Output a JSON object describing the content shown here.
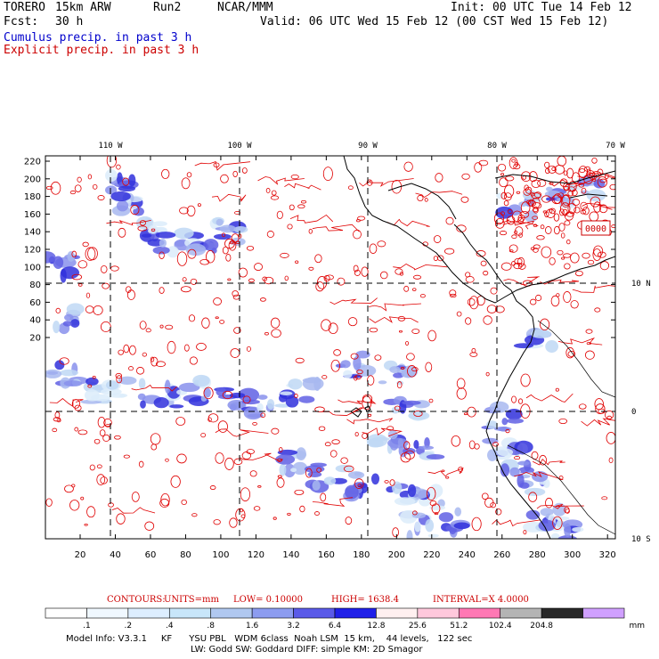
{
  "header": {
    "model": "TORERO",
    "resolution": "15km ARW",
    "run": "Run2",
    "institution": "NCAR/MMM",
    "init": "Init: 00 UTC Tue 14 Feb 12",
    "fcst_label": "Fcst:",
    "fcst_value": "30 h",
    "valid": "Valid: 06 UTC Wed 15 Feb 12 (00 CST Wed 15 Feb 12)",
    "field1": "Cumulus precip. in past 3 h",
    "field2": "Explicit precip. in past 3 h"
  },
  "colors": {
    "cumulus_label": "#0000cc",
    "explicit_label": "#cc0000",
    "explicit_contour": "#e00000",
    "coast": "#000000"
  },
  "map": {
    "lon_labels": [
      "110 W",
      "100 W",
      "90 W",
      "80 W",
      "70 W"
    ],
    "lat_labels": [
      "10 N",
      "0",
      "10 S"
    ],
    "y_ticks": [
      "220",
      "200",
      "180",
      "160",
      "140",
      "120",
      "100",
      "80",
      "60",
      "40",
      "20"
    ],
    "x_ticks": [
      "20",
      "40",
      "60",
      "80",
      "100",
      "120",
      "140",
      "160",
      "180",
      "200",
      "220",
      "240",
      "260",
      "280",
      "300",
      "320"
    ],
    "max_box": "0000"
  },
  "contours_info": {
    "label": "CONTOURS:",
    "units": "UNITS=mm",
    "low": "LOW= 0.10000",
    "high": "HIGH= 1638.4",
    "interval": "INTERVAL=X 4.0000"
  },
  "colorbar": {
    "labels": [
      ".1",
      ".2",
      ".4",
      ".8",
      "1.6",
      "3.2",
      "6.4",
      "12.8",
      "25.6",
      "51.2",
      "102.4",
      "204.8"
    ],
    "units": "mm",
    "colors": [
      "#ffffff",
      "#f0f8ff",
      "#ddeeff",
      "#c8e6fa",
      "#b0c8f0",
      "#8c9cf0",
      "#5a5ae8",
      "#2020e8",
      "#fff0f0",
      "#ffc8dc",
      "#ff78b4",
      "#b4b4b4",
      "#282828",
      "#d0a0ff"
    ]
  },
  "footer": {
    "line1": "Model Info: V3.3.1     KF      YSU PBL   WDM 6class  Noah LSM  15 km,    44 levels,   122 sec",
    "line2": "LW: Godd SW: Goddard DIFF: simple KM: 2D Smagor"
  }
}
